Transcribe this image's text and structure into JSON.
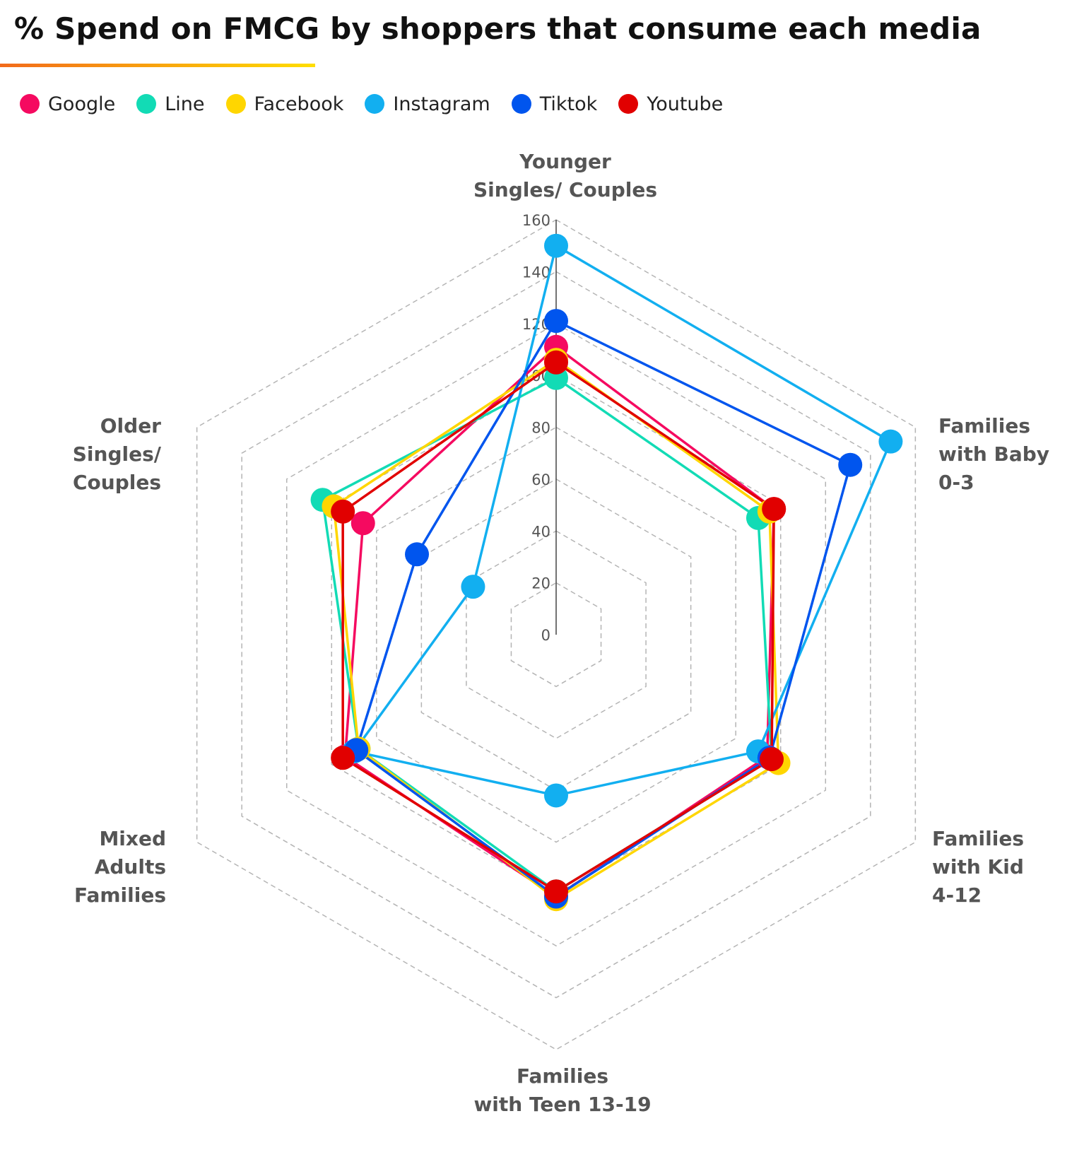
{
  "title": "% Spend on FMCG by shoppers that consume each media",
  "chart_data": {
    "type": "radar",
    "title": "% Spend on FMCG by shoppers that consume each media",
    "categories": [
      [
        "Younger",
        "Singles/ Couples"
      ],
      [
        "Families",
        "with Baby",
        "0-3"
      ],
      [
        "Families",
        "with Kid",
        "4-12"
      ],
      [
        "Families",
        "with Teen 13-19"
      ],
      [
        "Mixed",
        "Adults",
        "Families"
      ],
      [
        "Older",
        "Singles/",
        "Couples"
      ]
    ],
    "ticks": [
      "0",
      "20",
      "40",
      "60",
      "80",
      "100",
      "120",
      "140",
      "160"
    ],
    "rlim": [
      0,
      160
    ],
    "grid": true,
    "legend_position": "top-left",
    "series": [
      {
        "name": "Google",
        "color": "#f50a60",
        "values": [
          111,
          97,
          94,
          101,
          94,
          86
        ]
      },
      {
        "name": "Line",
        "color": "#12dbb5",
        "values": [
          99,
          90,
          96,
          99,
          88,
          104
        ]
      },
      {
        "name": "Facebook",
        "color": "#ffd600",
        "values": [
          106,
          95,
          99,
          102,
          88,
          99
        ]
      },
      {
        "name": "Instagram",
        "color": "#12aff0",
        "values": [
          150,
          149,
          90,
          62,
          90,
          37
        ]
      },
      {
        "name": "Tiktok",
        "color": "#0055ee",
        "values": [
          121,
          131,
          95,
          101,
          89,
          62
        ]
      },
      {
        "name": "Youtube",
        "color": "#e10000",
        "values": [
          105,
          97,
          96,
          99,
          95,
          95
        ]
      }
    ]
  }
}
